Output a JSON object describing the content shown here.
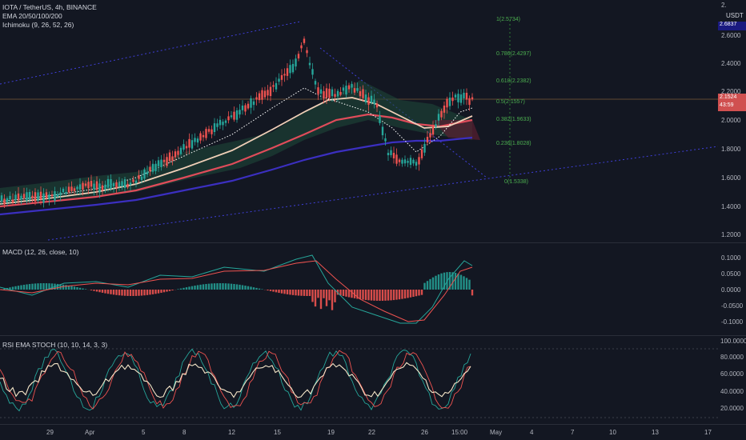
{
  "legend": {
    "symbol": "IOTA / TetherUS, 4h, BINANCE",
    "ema": "EMA 20/50/100/200",
    "ichimoku": "Ichimoku (9, 26, 52, 26)",
    "macd": "MACD (12, 26, close, 10)",
    "rsi": "RSI EMA STOCH (10, 10, 14, 3, 3)"
  },
  "price_axis": {
    "currency": "USDT",
    "labels": [
      "2.6000",
      "2.4000",
      "2.2000",
      "2.0000",
      "1.8000",
      "1.6000",
      "1.4000",
      "1.2000"
    ],
    "top_partial": "2.",
    "high_badge": "2.6837",
    "current_price": "2.1524",
    "countdown": "43:59"
  },
  "fib_levels": [
    {
      "text": "1(2.5734)"
    },
    {
      "text": "0.786(2.4297)"
    },
    {
      "text": "0.618(2.2382)"
    },
    {
      "text": "0.5(2.1557)"
    },
    {
      "text": "0.382(1.9633)"
    },
    {
      "text": "0.236(1.8028)"
    },
    {
      "text": "0(1.5338)"
    }
  ],
  "macd_axis": [
    "0.1000",
    "0.0500",
    "0.0000",
    "-0.0500",
    "-0.1000"
  ],
  "rsi_axis": [
    "100.0000",
    "80.0000",
    "60.0000",
    "40.0000",
    "20.0000"
  ],
  "time_axis": [
    "29",
    "Apr",
    "5",
    "8",
    "12",
    "15",
    "19",
    "22",
    "26",
    "15:00",
    "May",
    "4",
    "7",
    "10",
    "13",
    "17"
  ],
  "colors": {
    "background": "#131722",
    "up": "#26a69a",
    "down": "#ef5350",
    "ema_fast": "#f0d0b8",
    "ema_mid": "#e04c5a",
    "ema_slow": "#3b2fc0",
    "fib": "#3a7d44",
    "trendline": "#3f3fd8"
  }
}
